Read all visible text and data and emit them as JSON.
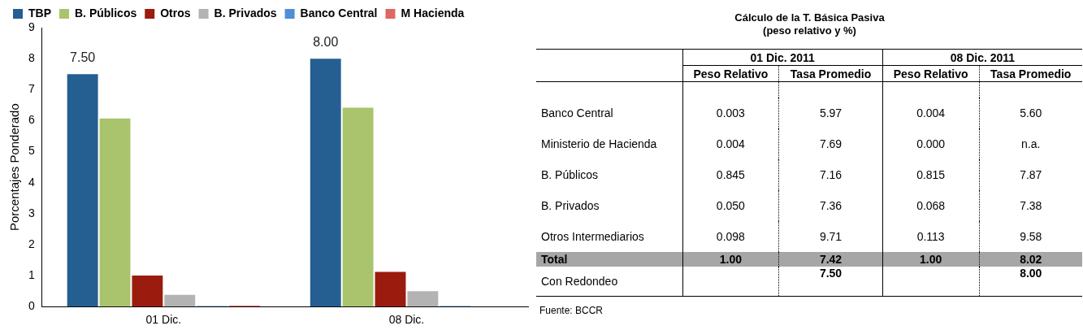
{
  "chart_data": [
    {
      "type": "bar",
      "ylabel": "Porcentajes Ponderado",
      "categories": [
        "01 Dic.",
        "08 Dic."
      ],
      "ylim": [
        0,
        9
      ],
      "yticks": [
        0,
        1,
        2,
        3,
        4,
        5,
        6,
        7,
        8,
        9
      ],
      "legend": "top",
      "series": [
        {
          "name": "TBP",
          "color": "#255e91",
          "values": [
            7.5,
            8.0
          ],
          "value_labels": [
            "7.50",
            "8.00"
          ]
        },
        {
          "name": "B. Públicos",
          "color": "#a9c46c",
          "values": [
            6.07,
            6.42
          ]
        },
        {
          "name": "Otros",
          "color": "#9b1b0f",
          "values": [
            1.0,
            1.12
          ]
        },
        {
          "name": "B. Privados",
          "color": "#b3b3b3",
          "values": [
            0.38,
            0.5
          ]
        },
        {
          "name": "Banco Central",
          "color": "#4f8fd6",
          "values": [
            0.02,
            0.02
          ]
        },
        {
          "name": "M Hacienda",
          "color": "#e06666",
          "values": [
            0.03,
            0
          ]
        }
      ]
    },
    {
      "type": "other",
      "title": "Cálculo de la T. Básica Pasiva",
      "subtitle": "(peso relativo y %)",
      "annotations": [
        "01 Dic. 2011",
        "08 Dic. 2011",
        "Fuente: BCCR"
      ],
      "categories": [
        "Peso Relativo",
        "Tasa Promedio",
        "Peso Relativo",
        "Tasa Promedio"
      ],
      "y_categories": [
        "Banco Central",
        "Ministerio de Hacienda",
        "B. Públicos",
        "B. Privados",
        "Otros Intermediarios",
        "Total",
        "Con Redondeo"
      ],
      "cell_labels": [
        [
          "0.003",
          "5.97",
          "0.004",
          "5.60"
        ],
        [
          "0.004",
          "7.69",
          "0.000",
          "n.a."
        ],
        [
          "0.845",
          "7.16",
          "0.815",
          "7.87"
        ],
        [
          "0.050",
          "7.36",
          "0.068",
          "7.38"
        ],
        [
          "0.098",
          "9.71",
          "0.113",
          "9.58"
        ],
        [
          "1.00",
          "7.42",
          "1.00",
          "8.02"
        ],
        [
          null,
          "7.50",
          null,
          "8.00"
        ]
      ]
    }
  ]
}
